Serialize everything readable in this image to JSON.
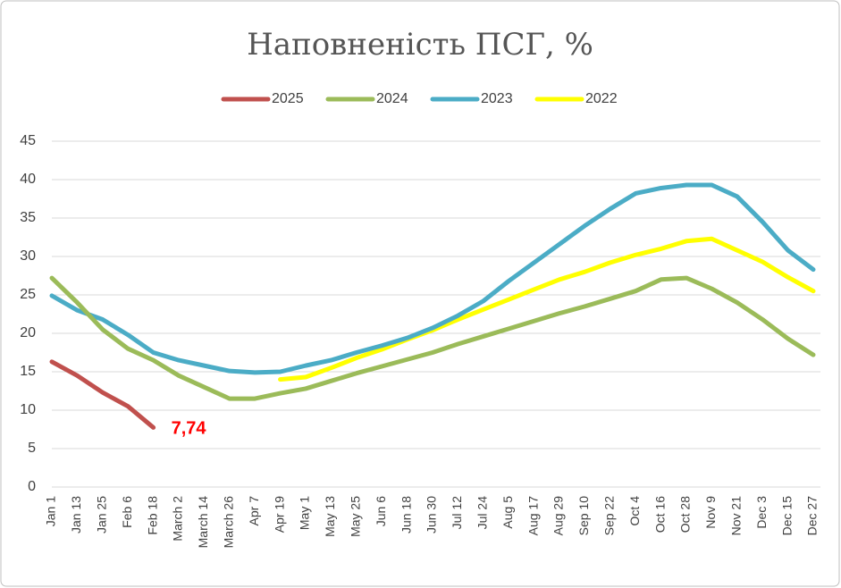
{
  "chart_data": {
    "type": "line",
    "title": "Наповненість ПСГ, %",
    "categories": [
      "Jan 1",
      "Jan 13",
      "Jan 25",
      "Feb 6",
      "Feb 18",
      "March 2",
      "March 14",
      "March 26",
      "Apr 7",
      "Apr 19",
      "May 1",
      "May 13",
      "May 25",
      "Jun 6",
      "Jun 18",
      "Jun 30",
      "Jul 12",
      "Jul 24",
      "Aug 5",
      "Aug 17",
      "Aug 29",
      "Sep 10",
      "Sep 22",
      "Oct 4",
      "Oct 16",
      "Oct 28",
      "Nov 9",
      "Nov 21",
      "Dec 3",
      "Dec 15",
      "Dec 27"
    ],
    "series": [
      {
        "name": "2025",
        "color": "#c0504d",
        "values": [
          16.3,
          14.5,
          12.3,
          10.5,
          7.74,
          null,
          null,
          null,
          null,
          null,
          null,
          null,
          null,
          null,
          null,
          null,
          null,
          null,
          null,
          null,
          null,
          null,
          null,
          null,
          null,
          null,
          null,
          null,
          null,
          null,
          null
        ],
        "value_labels": [
          null,
          null,
          null,
          null,
          "7,74",
          null,
          null,
          null,
          null,
          null,
          null,
          null,
          null,
          null,
          null,
          null,
          null,
          null,
          null,
          null,
          null,
          null,
          null,
          null,
          null,
          null,
          null,
          null,
          null,
          null,
          null
        ]
      },
      {
        "name": "2024",
        "color": "#9bbb59",
        "values": [
          27.2,
          24.0,
          20.5,
          18.0,
          16.5,
          14.5,
          13.0,
          11.5,
          11.5,
          12.2,
          12.8,
          13.8,
          14.8,
          15.7,
          16.6,
          17.5,
          18.6,
          19.6,
          20.6,
          21.6,
          22.6,
          23.5,
          24.5,
          25.5,
          27.0,
          27.2,
          25.8,
          24.0,
          21.8,
          19.3,
          17.2
        ]
      },
      {
        "name": "2023",
        "color": "#4bacc6",
        "values": [
          24.9,
          23.0,
          21.8,
          19.8,
          17.5,
          16.5,
          15.8,
          15.1,
          14.9,
          15.0,
          15.8,
          16.5,
          17.5,
          18.4,
          19.4,
          20.7,
          22.3,
          24.2,
          26.8,
          29.2,
          31.6,
          34.0,
          36.2,
          38.2,
          38.9,
          39.3,
          39.3,
          37.8,
          34.5,
          30.8,
          28.3
        ]
      },
      {
        "name": "2022",
        "color": "#ffff00",
        "values": [
          null,
          null,
          null,
          null,
          null,
          null,
          null,
          null,
          null,
          14.0,
          14.3,
          15.5,
          16.8,
          17.9,
          19.2,
          20.4,
          21.8,
          23.1,
          24.4,
          25.7,
          27.0,
          28.0,
          29.2,
          30.2,
          31.0,
          32.0,
          32.3,
          30.8,
          29.3,
          27.3,
          25.5
        ]
      }
    ],
    "ylim": [
      0,
      45
    ],
    "yticks": [
      0,
      5,
      10,
      15,
      20,
      25,
      30,
      35,
      40,
      45
    ],
    "grid": true,
    "legend": "top"
  }
}
